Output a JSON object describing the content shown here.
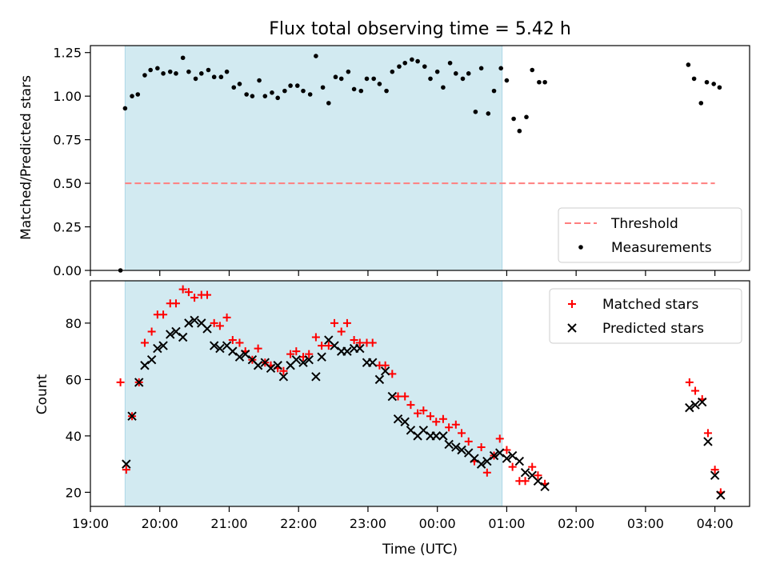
{
  "chart_data": [
    {
      "type": "scatter",
      "title": "Flux total observing time = 5.42 h",
      "xlabel": "",
      "ylabel": "Matched/Predicted stars",
      "xlim": [
        "19:00",
        "04:30"
      ],
      "ylim": [
        0,
        1.29
      ],
      "yticks": [
        "0.00",
        "0.25",
        "0.50",
        "0.75",
        "1.00",
        "1.25"
      ],
      "grid": false,
      "legend_position": "lower-right",
      "shaded_region": {
        "from": "19:30",
        "to": "00:56",
        "color": "#add8e6"
      },
      "series": [
        {
          "name": "Threshold",
          "kind": "dashed-line",
          "color": "#ff7f7f",
          "points": [
            [
              "19:30",
              0.5
            ],
            [
              "04:00",
              0.5
            ]
          ]
        },
        {
          "name": "Measurements",
          "kind": "dots",
          "color": "#000000",
          "points": [
            [
              "19:26",
              0.0
            ],
            [
              "19:30",
              0.93
            ],
            [
              "19:36",
              1.0
            ],
            [
              "19:41",
              1.01
            ],
            [
              "19:47",
              1.12
            ],
            [
              "19:52",
              1.15
            ],
            [
              "19:58",
              1.16
            ],
            [
              "20:03",
              1.13
            ],
            [
              "20:09",
              1.14
            ],
            [
              "20:14",
              1.13
            ],
            [
              "20:20",
              1.22
            ],
            [
              "20:25",
              1.14
            ],
            [
              "20:31",
              1.1
            ],
            [
              "20:36",
              1.13
            ],
            [
              "20:42",
              1.15
            ],
            [
              "20:47",
              1.11
            ],
            [
              "20:53",
              1.11
            ],
            [
              "20:58",
              1.14
            ],
            [
              "21:04",
              1.05
            ],
            [
              "21:09",
              1.07
            ],
            [
              "21:15",
              1.01
            ],
            [
              "21:20",
              1.0
            ],
            [
              "21:26",
              1.09
            ],
            [
              "21:31",
              1.0
            ],
            [
              "21:37",
              1.02
            ],
            [
              "21:42",
              0.99
            ],
            [
              "21:48",
              1.03
            ],
            [
              "21:53",
              1.06
            ],
            [
              "21:59",
              1.06
            ],
            [
              "22:04",
              1.03
            ],
            [
              "22:10",
              1.01
            ],
            [
              "22:15",
              1.23
            ],
            [
              "22:21",
              1.05
            ],
            [
              "22:26",
              0.96
            ],
            [
              "22:32",
              1.11
            ],
            [
              "22:37",
              1.1
            ],
            [
              "22:43",
              1.14
            ],
            [
              "22:48",
              1.04
            ],
            [
              "22:54",
              1.03
            ],
            [
              "22:59",
              1.1
            ],
            [
              "23:05",
              1.1
            ],
            [
              "23:10",
              1.07
            ],
            [
              "23:16",
              1.03
            ],
            [
              "23:21",
              1.14
            ],
            [
              "23:27",
              1.17
            ],
            [
              "23:32",
              1.19
            ],
            [
              "23:38",
              1.21
            ],
            [
              "23:43",
              1.2
            ],
            [
              "23:49",
              1.17
            ],
            [
              "23:54",
              1.1
            ],
            [
              "00:00",
              1.14
            ],
            [
              "00:05",
              1.05
            ],
            [
              "00:11",
              1.19
            ],
            [
              "00:16",
              1.13
            ],
            [
              "00:22",
              1.1
            ],
            [
              "00:27",
              1.13
            ],
            [
              "00:33",
              0.91
            ],
            [
              "00:38",
              1.16
            ],
            [
              "00:44",
              0.9
            ],
            [
              "00:49",
              1.03
            ],
            [
              "00:55",
              1.16
            ],
            [
              "01:00",
              1.09
            ],
            [
              "01:06",
              0.87
            ],
            [
              "01:11",
              0.8
            ],
            [
              "01:17",
              0.88
            ],
            [
              "01:22",
              1.15
            ],
            [
              "01:28",
              1.08
            ],
            [
              "01:33",
              1.08
            ],
            [
              "03:37",
              1.18
            ],
            [
              "03:42",
              1.1
            ],
            [
              "03:48",
              0.96
            ],
            [
              "03:53",
              1.08
            ],
            [
              "03:59",
              1.07
            ],
            [
              "04:04",
              1.05
            ]
          ]
        }
      ]
    },
    {
      "type": "scatter",
      "title": "",
      "xlabel": "Time (UTC)",
      "ylabel": "Count",
      "xlim": [
        "19:00",
        "04:30"
      ],
      "ylim": [
        15,
        95
      ],
      "yticks": [
        "20",
        "40",
        "60",
        "80"
      ],
      "xticks": [
        "19:00",
        "20:00",
        "21:00",
        "22:00",
        "23:00",
        "00:00",
        "01:00",
        "02:00",
        "03:00",
        "04:00"
      ],
      "grid": false,
      "legend_position": "upper-right",
      "shaded_region": {
        "from": "19:30",
        "to": "00:56",
        "color": "#add8e6"
      },
      "series": [
        {
          "name": "Matched stars",
          "kind": "plus",
          "color": "#ff0000",
          "points": [
            [
              "19:26",
              59
            ],
            [
              "19:31",
              28
            ],
            [
              "19:36",
              47
            ],
            [
              "19:42",
              59
            ],
            [
              "19:47",
              73
            ],
            [
              "19:53",
              77
            ],
            [
              "19:58",
              83
            ],
            [
              "20:03",
              83
            ],
            [
              "20:09",
              87
            ],
            [
              "20:14",
              87
            ],
            [
              "20:20",
              92
            ],
            [
              "20:25",
              91
            ],
            [
              "20:30",
              89
            ],
            [
              "20:36",
              90
            ],
            [
              "20:41",
              90
            ],
            [
              "20:47",
              80
            ],
            [
              "20:52",
              79
            ],
            [
              "20:58",
              82
            ],
            [
              "21:03",
              74
            ],
            [
              "21:09",
              73
            ],
            [
              "21:14",
              70
            ],
            [
              "21:20",
              67
            ],
            [
              "21:25",
              71
            ],
            [
              "21:31",
              66
            ],
            [
              "21:36",
              65
            ],
            [
              "21:42",
              64
            ],
            [
              "21:47",
              63
            ],
            [
              "21:53",
              69
            ],
            [
              "21:58",
              70
            ],
            [
              "22:04",
              68
            ],
            [
              "22:09",
              69
            ],
            [
              "22:15",
              75
            ],
            [
              "22:20",
              72
            ],
            [
              "22:26",
              72
            ],
            [
              "22:31",
              80
            ],
            [
              "22:37",
              77
            ],
            [
              "22:42",
              80
            ],
            [
              "22:48",
              74
            ],
            [
              "22:53",
              73
            ],
            [
              "22:59",
              73
            ],
            [
              "23:04",
              73
            ],
            [
              "23:10",
              65
            ],
            [
              "23:15",
              65
            ],
            [
              "23:21",
              62
            ],
            [
              "23:26",
              54
            ],
            [
              "23:32",
              54
            ],
            [
              "23:37",
              51
            ],
            [
              "23:43",
              48
            ],
            [
              "23:48",
              49
            ],
            [
              "23:54",
              47
            ],
            [
              "23:59",
              45
            ],
            [
              "00:05",
              46
            ],
            [
              "00:10",
              43
            ],
            [
              "00:16",
              44
            ],
            [
              "00:21",
              41
            ],
            [
              "00:27",
              38
            ],
            [
              "00:32",
              31
            ],
            [
              "00:38",
              36
            ],
            [
              "00:43",
              27
            ],
            [
              "00:49",
              33
            ],
            [
              "00:54",
              39
            ],
            [
              "01:00",
              35
            ],
            [
              "01:05",
              29
            ],
            [
              "01:11",
              24
            ],
            [
              "01:16",
              24
            ],
            [
              "01:22",
              29
            ],
            [
              "01:27",
              26
            ],
            [
              "01:33",
              23
            ],
            [
              "03:38",
              59
            ],
            [
              "03:43",
              56
            ],
            [
              "03:49",
              53
            ],
            [
              "03:54",
              41
            ],
            [
              "04:00",
              28
            ],
            [
              "04:05",
              20
            ]
          ]
        },
        {
          "name": "Predicted stars",
          "kind": "cross",
          "color": "#000000",
          "points": [
            [
              "19:31",
              30
            ],
            [
              "19:36",
              47
            ],
            [
              "19:42",
              59
            ],
            [
              "19:47",
              65
            ],
            [
              "19:53",
              67
            ],
            [
              "19:58",
              71
            ],
            [
              "20:03",
              72
            ],
            [
              "20:09",
              76
            ],
            [
              "20:14",
              77
            ],
            [
              "20:20",
              75
            ],
            [
              "20:25",
              80
            ],
            [
              "20:30",
              81
            ],
            [
              "20:36",
              80
            ],
            [
              "20:41",
              78
            ],
            [
              "20:47",
              72
            ],
            [
              "20:52",
              71
            ],
            [
              "20:58",
              72
            ],
            [
              "21:03",
              70
            ],
            [
              "21:09",
              68
            ],
            [
              "21:14",
              69
            ],
            [
              "21:20",
              67
            ],
            [
              "21:25",
              65
            ],
            [
              "21:31",
              66
            ],
            [
              "21:36",
              64
            ],
            [
              "21:42",
              65
            ],
            [
              "21:47",
              61
            ],
            [
              "21:53",
              65
            ],
            [
              "21:58",
              67
            ],
            [
              "22:04",
              66
            ],
            [
              "22:09",
              67
            ],
            [
              "22:15",
              61
            ],
            [
              "22:20",
              68
            ],
            [
              "22:26",
              74
            ],
            [
              "22:31",
              72
            ],
            [
              "22:37",
              70
            ],
            [
              "22:42",
              70
            ],
            [
              "22:48",
              71
            ],
            [
              "22:53",
              71
            ],
            [
              "22:59",
              66
            ],
            [
              "23:04",
              66
            ],
            [
              "23:10",
              60
            ],
            [
              "23:15",
              63
            ],
            [
              "23:21",
              54
            ],
            [
              "23:26",
              46
            ],
            [
              "23:32",
              45
            ],
            [
              "23:37",
              42
            ],
            [
              "23:43",
              40
            ],
            [
              "23:48",
              42
            ],
            [
              "23:54",
              40
            ],
            [
              "23:59",
              40
            ],
            [
              "00:05",
              40
            ],
            [
              "00:10",
              37
            ],
            [
              "00:16",
              36
            ],
            [
              "00:21",
              35
            ],
            [
              "00:27",
              34
            ],
            [
              "00:32",
              32
            ],
            [
              "00:38",
              30
            ],
            [
              "00:43",
              31
            ],
            [
              "00:49",
              33
            ],
            [
              "00:54",
              34
            ],
            [
              "01:00",
              32
            ],
            [
              "01:05",
              33
            ],
            [
              "01:11",
              31
            ],
            [
              "01:16",
              27
            ],
            [
              "01:22",
              26
            ],
            [
              "01:27",
              24
            ],
            [
              "01:33",
              22
            ],
            [
              "03:38",
              50
            ],
            [
              "03:43",
              51
            ],
            [
              "03:49",
              52
            ],
            [
              "03:54",
              38
            ],
            [
              "04:00",
              26
            ],
            [
              "04:05",
              19
            ]
          ]
        }
      ]
    }
  ]
}
